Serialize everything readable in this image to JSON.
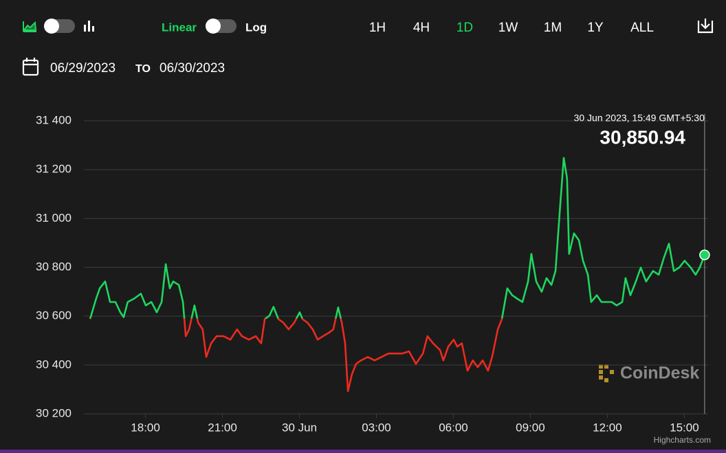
{
  "ui": {
    "scale_linear": "Linear",
    "scale_log": "Log",
    "ranges": [
      "1H",
      "4H",
      "1D",
      "1W",
      "1M",
      "1Y",
      "ALL"
    ],
    "active_range": 2,
    "date_from": "06/29/2023",
    "date_to_word": "TO",
    "date_to": "06/30/2023",
    "watermark": "CoinDesk",
    "credits": "Highcharts.com"
  },
  "chart_data": {
    "type": "line",
    "x": [
      15.84,
      16.08,
      16.22,
      16.43,
      16.62,
      16.83,
      17.02,
      17.15,
      17.31,
      17.56,
      17.82,
      18.01,
      18.23,
      18.44,
      18.63,
      18.79,
      18.95,
      19.08,
      19.3,
      19.46,
      19.57,
      19.7,
      19.91,
      20.05,
      20.23,
      20.37,
      20.56,
      20.77,
      21.04,
      21.31,
      21.57,
      21.76,
      22.03,
      22.3,
      22.51,
      22.65,
      22.83,
      22.99,
      23.18,
      23.37,
      23.58,
      23.8,
      24.01,
      24.12,
      24.31,
      24.52,
      24.71,
      24.92,
      25.14,
      25.32,
      25.51,
      25.65,
      25.78,
      25.89,
      26.05,
      26.21,
      26.4,
      26.66,
      26.93,
      27.2,
      27.47,
      27.74,
      28.0,
      28.27,
      28.54,
      28.81,
      28.99,
      29.21,
      29.48,
      29.61,
      29.8,
      30.01,
      30.15,
      30.33,
      30.55,
      30.76,
      30.95,
      31.14,
      31.35,
      31.51,
      31.73,
      31.89,
      32.1,
      32.29,
      32.48,
      32.69,
      32.91,
      33.04,
      33.23,
      33.44,
      33.63,
      33.82,
      33.98,
      34.16,
      34.3,
      34.43,
      34.51,
      34.7,
      34.89,
      35.05,
      35.24,
      35.37,
      35.59,
      35.77,
      35.99,
      36.17,
      36.36,
      36.58,
      36.71,
      36.9,
      37.11,
      37.3,
      37.51,
      37.78,
      38.0,
      38.21,
      38.4,
      38.59,
      38.8,
      39.01,
      39.25,
      39.44,
      39.6,
      39.79
    ],
    "series": [
      {
        "color": "#1fd65f",
        "negative_color": "#ec2a1f",
        "values": [
          30588,
          30672,
          30714,
          30742,
          30658,
          30658,
          30616,
          30596,
          30658,
          30672,
          30692,
          30644,
          30658,
          30616,
          30658,
          30813,
          30714,
          30742,
          30728,
          30658,
          30518,
          30546,
          30644,
          30574,
          30546,
          30433,
          30489,
          30518,
          30518,
          30504,
          30546,
          30518,
          30504,
          30518,
          30489,
          30588,
          30602,
          30638,
          30588,
          30574,
          30546,
          30574,
          30616,
          30588,
          30574,
          30546,
          30504,
          30518,
          30532,
          30546,
          30636,
          30574,
          30489,
          30293,
          30363,
          30405,
          30419,
          30433,
          30419,
          30433,
          30447,
          30447,
          30447,
          30456,
          30405,
          30447,
          30518,
          30489,
          30461,
          30419,
          30475,
          30504,
          30475,
          30489,
          30377,
          30419,
          30391,
          30419,
          30377,
          30433,
          30546,
          30588,
          30714,
          30686,
          30672,
          30658,
          30742,
          30855,
          30742,
          30700,
          30756,
          30728,
          30785,
          31052,
          31248,
          31164,
          30855,
          30939,
          30911,
          30827,
          30770,
          30658,
          30686,
          30658,
          30658,
          30658,
          30644,
          30658,
          30756,
          30686,
          30742,
          30799,
          30742,
          30785,
          30770,
          30841,
          30897,
          30785,
          30799,
          30827,
          30799,
          30770,
          30799,
          30850.94
        ]
      }
    ],
    "threshold": 30590,
    "xlim": [
      15.6,
      39.9
    ],
    "xticks": [
      {
        "value": 18,
        "label": "18:00"
      },
      {
        "value": 21,
        "label": "21:00"
      },
      {
        "value": 24,
        "label": "30 Jun"
      },
      {
        "value": 27,
        "label": "03:00"
      },
      {
        "value": 30,
        "label": "06:00"
      },
      {
        "value": 33,
        "label": "09:00"
      },
      {
        "value": 36,
        "label": "12:00"
      },
      {
        "value": 39,
        "label": "15:00"
      }
    ],
    "ylim": [
      30200,
      31400
    ],
    "yticks": [
      {
        "value": 30200,
        "label": "30 200"
      },
      {
        "value": 30400,
        "label": "30 400"
      },
      {
        "value": 30600,
        "label": "30 600"
      },
      {
        "value": 30800,
        "label": "30 800"
      },
      {
        "value": 31000,
        "label": "31 000"
      },
      {
        "value": 31200,
        "label": "31 200"
      },
      {
        "value": 31400,
        "label": "31 400"
      }
    ],
    "grid": true,
    "tooltip": {
      "title": "30 Jun 2023, 15:49 GMT+5:30",
      "value_label": "30,850.94"
    }
  }
}
